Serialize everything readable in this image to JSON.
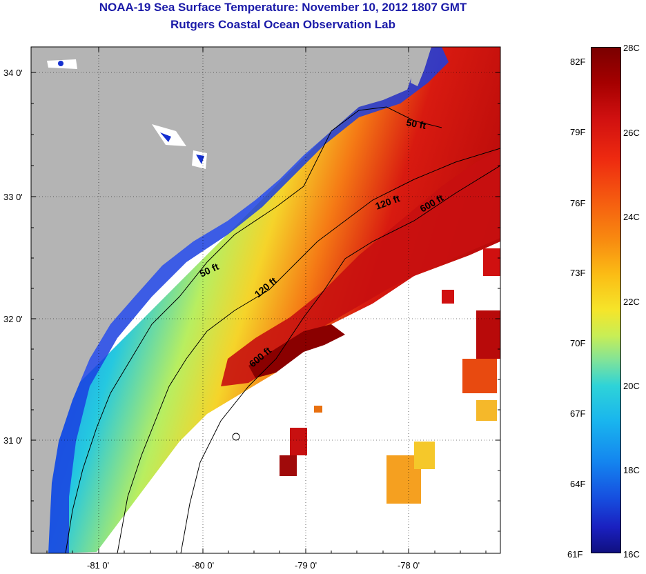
{
  "title": {
    "line1": "NOAA-19 Sea Surface Temperature:  November 10, 2012 1807 GMT",
    "line2": "Rutgers Coastal Ocean Observation Lab"
  },
  "map": {
    "lat_ticks": [
      "34 0'",
      "33 0'",
      "32 0'",
      "31 0'"
    ],
    "lon_ticks": [
      "-81 0'",
      "-80 0'",
      "-79 0'",
      "-78 0'"
    ],
    "contour_labels": [
      "50 ft",
      "120 ft",
      "600 ft",
      "50 ft",
      "120 ft",
      "600 ft"
    ],
    "colors": {
      "land": "#b4b4b4",
      "cloud": "#ffffff",
      "nearshore_blue": "#1530d0",
      "mid_cyan": "#25c8e0",
      "shelf_yellow": "#f5d42a",
      "gulfstream_red": "#d81a10",
      "deep_red": "#8a0000"
    }
  },
  "colorbar": {
    "fahrenheit": [
      "82F",
      "79F",
      "76F",
      "73F",
      "70F",
      "67F",
      "64F",
      "61F"
    ],
    "celsius": [
      "28C",
      "26C",
      "24C",
      "22C",
      "20C",
      "18C",
      "16C"
    ]
  }
}
